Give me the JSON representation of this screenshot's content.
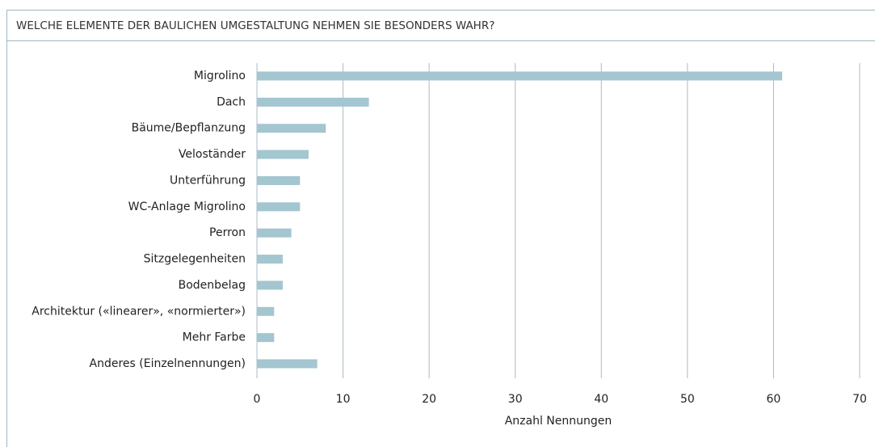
{
  "chart_data": {
    "type": "bar",
    "orientation": "horizontal",
    "title": "WELCHE ELEMENTE DER BAULICHEN UMGESTALTUNG NEHMEN SIE BESONDERS WAHR?",
    "categories": [
      "Migrolino",
      "Dach",
      "Bäume/Bepflanzung",
      "Veloständer",
      "Unterführung",
      "WC-Anlage Migrolino",
      "Perron",
      "Sitzgelegenheiten",
      "Bodenbelag",
      "Architektur («linearer», «normierter»)",
      "Mehr Farbe",
      "Anderes (Einzelnennungen)"
    ],
    "values": [
      61,
      13,
      8,
      6,
      5,
      5,
      4,
      3,
      3,
      2,
      2,
      7
    ],
    "color": "#a3c6d0",
    "xlabel": "Anzahl Nennungen",
    "xlim": [
      0,
      70
    ],
    "xticks": [
      0,
      10,
      20,
      30,
      40,
      50,
      60,
      70
    ],
    "grid": true
  }
}
